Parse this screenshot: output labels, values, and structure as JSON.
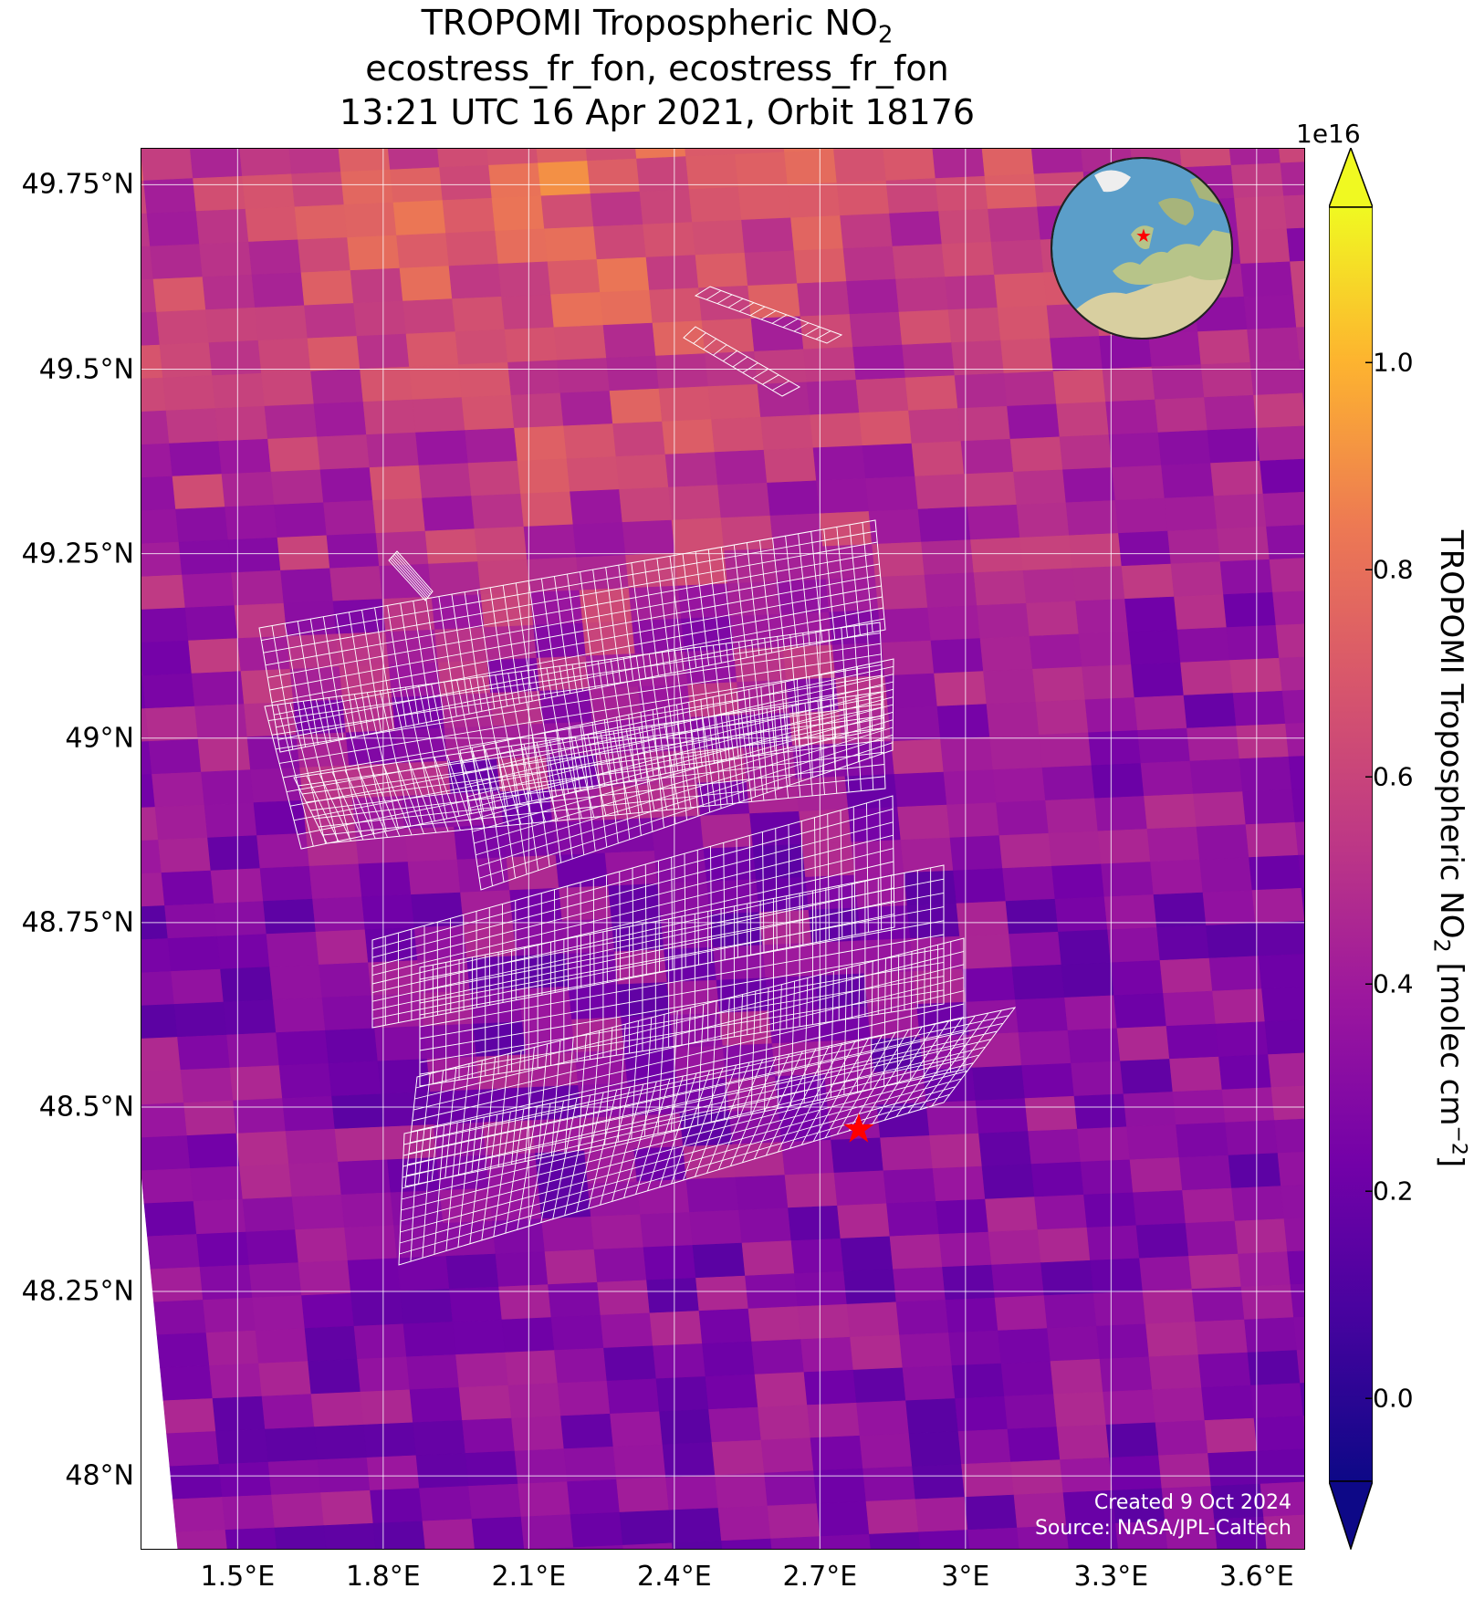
{
  "title": {
    "line1_prefix": "TROPOMI Tropospheric NO",
    "line1_sub": "2",
    "line2": "ecostress_fr_fon, ecostress_fr_fon",
    "line3": "13:21 UTC 16 Apr 2021, Orbit 18176"
  },
  "map": {
    "lon_range": [
      1.3,
      3.7
    ],
    "lat_range": [
      47.9,
      49.8
    ],
    "x_ticks": [
      "1.5°E",
      "1.8°E",
      "2.1°E",
      "2.4°E",
      "2.7°E",
      "3°E",
      "3.3°E",
      "3.6°E"
    ],
    "x_tick_values": [
      1.5,
      1.8,
      2.1,
      2.4,
      2.7,
      3.0,
      3.3,
      3.6
    ],
    "y_ticks": [
      "49.75°N",
      "49.5°N",
      "49.25°N",
      "49°N",
      "48.75°N",
      "48.5°N",
      "48.25°N",
      "48°N"
    ],
    "y_tick_values": [
      49.75,
      49.5,
      49.25,
      49.0,
      48.75,
      48.5,
      48.25,
      48.0
    ],
    "site_marker": {
      "lon": 2.78,
      "lat": 48.47,
      "color": "#ff0000",
      "icon": "star-icon"
    },
    "gridlines": true,
    "overlay_color": "#ffffff",
    "colormap": "plasma"
  },
  "colorbar": {
    "exponent_label": "1e16",
    "ticks": [
      "0.0",
      "0.2",
      "0.4",
      "0.6",
      "0.8",
      "1.0"
    ],
    "tick_values": [
      0.0,
      0.2,
      0.4,
      0.6,
      0.8,
      1.0
    ],
    "range": [
      -0.08,
      1.15
    ],
    "label_prefix": "TROPOMI Tropospheric NO",
    "label_sub": "2",
    "label_mid": " [molec cm",
    "label_sup": "−2",
    "label_suffix": "]",
    "extend": "both"
  },
  "footer": {
    "created": "Created 9 Oct 2024",
    "source": "Source: NASA/JPL-Caltech"
  },
  "inset_globe": {
    "icon": "globe-icon",
    "marker_color": "#ff0000"
  }
}
